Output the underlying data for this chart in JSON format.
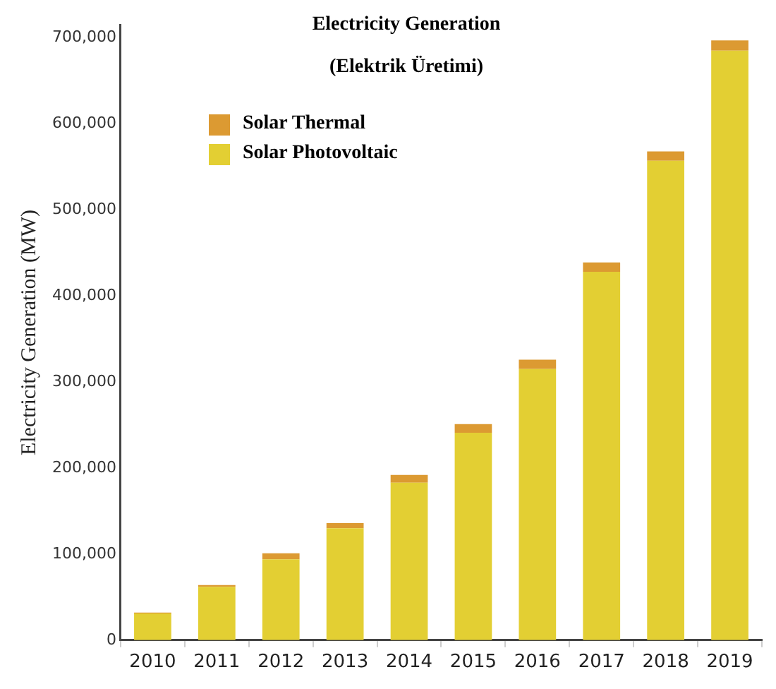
{
  "chart_data": {
    "type": "bar",
    "title": "Electricity Generation",
    "subtitle": "(Elektrik Üretimi)",
    "ylabel": "Electricity Generation (MW)",
    "categories": [
      "2010",
      "2011",
      "2012",
      "2013",
      "2014",
      "2015",
      "2016",
      "2017",
      "2018",
      "2019"
    ],
    "stacked": true,
    "series": [
      {
        "name": "Solar Photovoltaic",
        "color": "#e3cf33",
        "values": [
          31000,
          62000,
          94000,
          130000,
          183000,
          241000,
          315000,
          428000,
          557000,
          685000
        ]
      },
      {
        "name": "Solar Thermal",
        "color": "#dc9a32",
        "values": [
          1000,
          2000,
          7000,
          6000,
          9000,
          10000,
          11000,
          11000,
          11000,
          12000
        ]
      }
    ],
    "ylim": [
      0,
      715000
    ],
    "yticks": [
      0,
      {
        "value": 100000,
        "label": "100,000"
      },
      {
        "value": 200000,
        "label": "200,000"
      },
      {
        "value": 300000,
        "label": "300,000"
      },
      {
        "value": 400000,
        "label": "400,000"
      },
      {
        "value": 500000,
        "label": "500,000"
      },
      {
        "value": 600000,
        "label": "600,000"
      },
      {
        "value": 700000,
        "label": "700,000"
      }
    ],
    "grid": false,
    "legend": "top left"
  }
}
